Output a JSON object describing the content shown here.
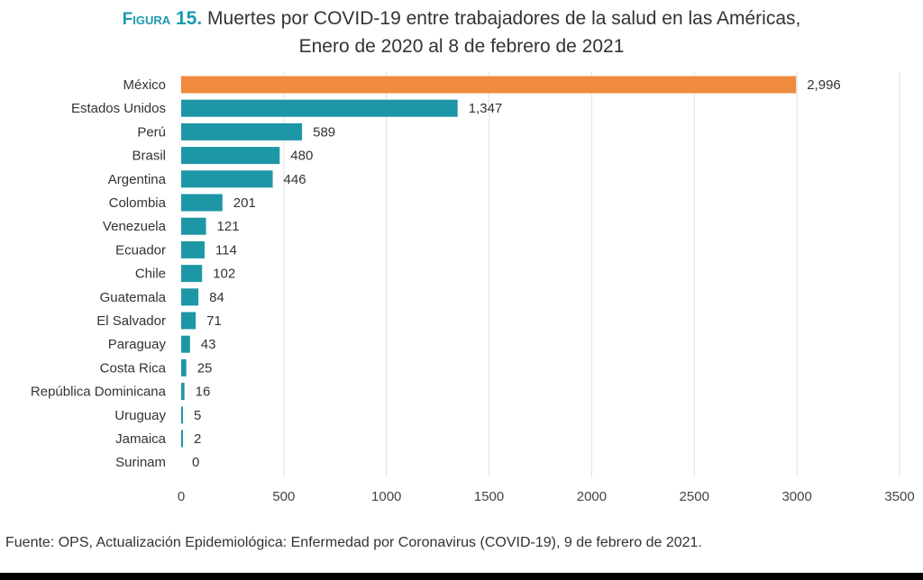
{
  "figure": {
    "label": "Figura",
    "number": "15.",
    "title_line1": "Muertes por COVID-19 entre trabajadores de la salud en las Américas,",
    "title_line2": "Enero de 2020 al 8 de febrero de 2021"
  },
  "source_text": "Fuente: OPS, Actualización Epidemiológica: Enfermedad por Coronavirus (COVID-19), 9 de febrero de 2021.",
  "colors": {
    "highlight": "#f08a3c",
    "bar": "#1d97a6",
    "grid": "#e2e2e2"
  },
  "chart_data": {
    "type": "bar",
    "orientation": "horizontal",
    "categories": [
      "México",
      "Estados Unidos",
      "Perú",
      "Brasil",
      "Argentina",
      "Colombia",
      "Venezuela",
      "Ecuador",
      "Chile",
      "Guatemala",
      "El Salvador",
      "Paraguay",
      "Costa Rica",
      "República Dominicana",
      "Uruguay",
      "Jamaica",
      "Surinam"
    ],
    "values": [
      2996,
      1347,
      589,
      480,
      446,
      201,
      121,
      114,
      102,
      84,
      71,
      43,
      25,
      16,
      5,
      2,
      0
    ],
    "value_labels": [
      "2,996",
      "1,347",
      "589",
      "480",
      "446",
      "201",
      "121",
      "114",
      "102",
      "84",
      "71",
      "43",
      "25",
      "16",
      "5",
      "2",
      "0"
    ],
    "highlight_index": 0,
    "xlim": [
      0,
      3500
    ],
    "xticks": [
      0,
      500,
      1000,
      1500,
      2000,
      2500,
      3000,
      3500
    ],
    "grid": true,
    "legend": "none"
  }
}
